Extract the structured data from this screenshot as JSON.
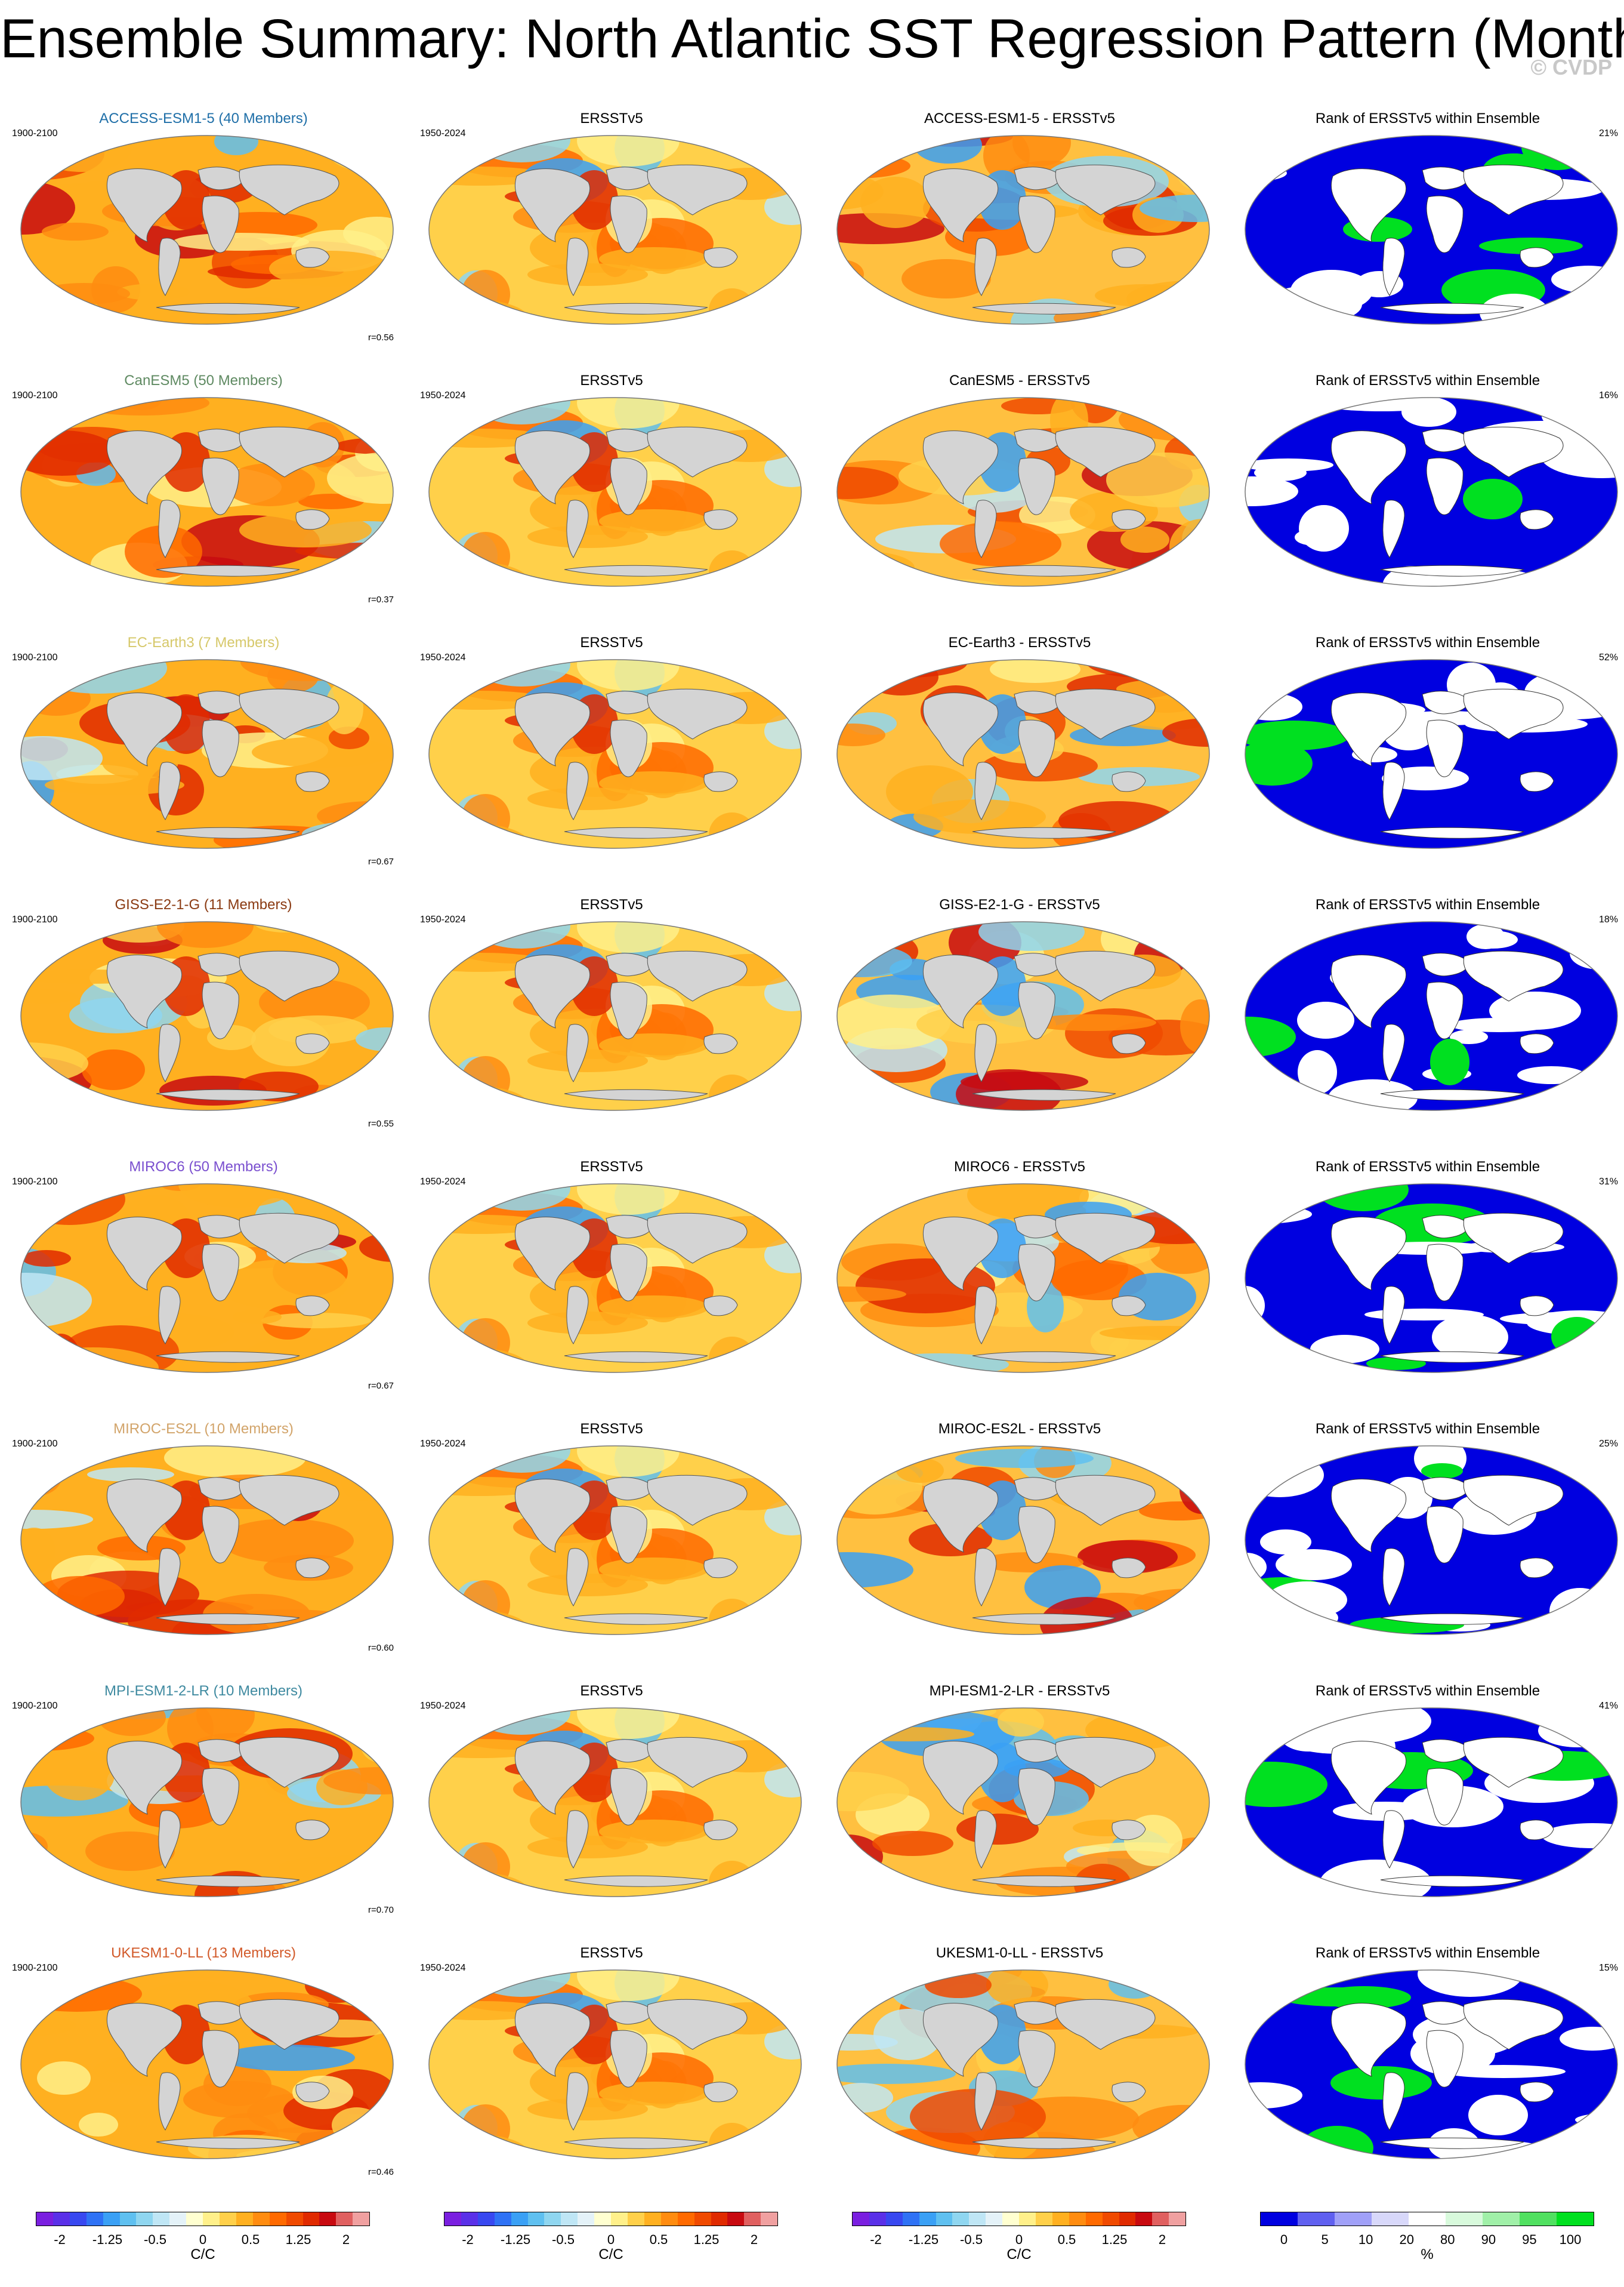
{
  "title": "Ensemble Summary: North Atlantic SST Regression Pattern (Monthly)",
  "watermark": "© CVDP",
  "obs_period": "1950-2024",
  "model_period": "1900-2100",
  "obs_name": "ERSSTv5",
  "rank_title": "Rank of ERSSTv5 within Ensemble",
  "rows": [
    {
      "model_title": "ACCESS-ESM1-5 (40 Members)",
      "model_color": "#1f6fa8",
      "diff_title": "ACCESS-ESM1-5 - ERSSTv5",
      "corr": "r=0.56",
      "rank_pct": "21%"
    },
    {
      "model_title": "CanESM5 (50 Members)",
      "model_color": "#5f8a62",
      "diff_title": "CanESM5 - ERSSTv5",
      "corr": "r=0.37",
      "rank_pct": "16%"
    },
    {
      "model_title": "EC-Earth3 (7 Members)",
      "model_color": "#d6c86a",
      "diff_title": "EC-Earth3 - ERSSTv5",
      "corr": "r=0.67",
      "rank_pct": "52%"
    },
    {
      "model_title": "GISS-E2-1-G (11 Members)",
      "model_color": "#8a3a12",
      "diff_title": "GISS-E2-1-G - ERSSTv5",
      "corr": "r=0.55",
      "rank_pct": "18%"
    },
    {
      "model_title": "MIROC6 (50 Members)",
      "model_color": "#7a4fcf",
      "diff_title": "MIROC6 - ERSSTv5",
      "corr": "r=0.67",
      "rank_pct": "31%"
    },
    {
      "model_title": "MIROC-ES2L (10 Members)",
      "model_color": "#d2a46a",
      "diff_title": "MIROC-ES2L - ERSSTv5",
      "corr": "r=0.60",
      "rank_pct": "25%"
    },
    {
      "model_title": "MPI-ESM1-2-LR (10 Members)",
      "model_color": "#3f8aa0",
      "diff_title": "MPI-ESM1-2-LR - ERSSTv5",
      "corr": "r=0.70",
      "rank_pct": "41%"
    },
    {
      "model_title": "UKESM1-0-LL (13 Members)",
      "model_color": "#d25a2a",
      "diff_title": "UKESM1-0-LL - ERSSTv5",
      "corr": "r=0.46",
      "rank_pct": "15%"
    }
  ],
  "colorbar_sst": {
    "label": "C/C",
    "ticks": [
      "-2",
      "-1.25",
      "-0.5",
      "0",
      "0.5",
      "1.25",
      "2"
    ],
    "colors": [
      "#7a1fe0",
      "#5a30e8",
      "#3848f0",
      "#2f72f5",
      "#3aa0f5",
      "#5fc0f0",
      "#8fd6f0",
      "#bfe6f5",
      "#e4f2f8",
      "#ffffd0",
      "#fff08a",
      "#ffd04a",
      "#ffb020",
      "#ff8c10",
      "#ff6a00",
      "#f04a00",
      "#e02a00",
      "#c80a10",
      "#e06060",
      "#f0a0a0"
    ]
  },
  "colorbar_rank": {
    "label": "%",
    "ticks": [
      "0",
      "5",
      "10",
      "20",
      "80",
      "90",
      "95",
      "100"
    ],
    "colors": [
      "#0000e0",
      "#6060f0",
      "#a0a0f8",
      "#d8d8fa",
      "#ffffff",
      "#d8fadc",
      "#a0f0a8",
      "#50e060",
      "#00e020"
    ]
  }
}
